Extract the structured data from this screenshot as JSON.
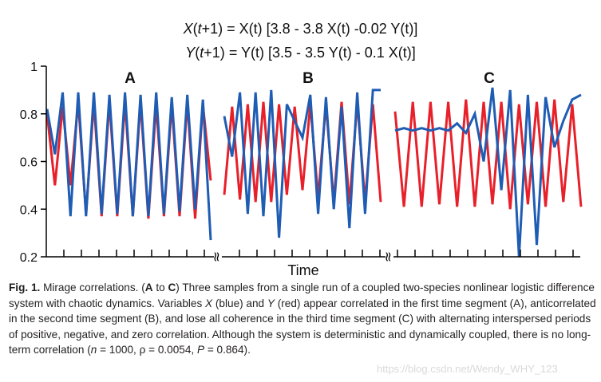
{
  "equations": {
    "eq1": {
      "lhs_var": "X",
      "lhs_arg": "t",
      "rhs": "= X(t) [3.8 - 3.8 X(t) -0.02 Y(t)]"
    },
    "eq2": {
      "lhs_var": "Y",
      "lhs_arg": "t",
      "rhs": "= Y(t) [3.5 - 3.5 Y(t) - 0.1 X(t)]"
    }
  },
  "chart_data": {
    "type": "line",
    "title": "",
    "xlabel": "Time",
    "ylabel": "",
    "ylim": [
      0.2,
      1.0
    ],
    "y_ticks": [
      "0.2",
      "0.4",
      "0.6",
      "0.8",
      "1"
    ],
    "grid": false,
    "axis_break_marker": "≈",
    "segments": [
      {
        "label": "A",
        "series": [
          {
            "name": "Y",
            "color": "#e8202a",
            "values": [
              0.8,
              0.5,
              0.83,
              0.5,
              0.85,
              0.38,
              0.85,
              0.37,
              0.85,
              0.37,
              0.85,
              0.37,
              0.85,
              0.36,
              0.84,
              0.37,
              0.84,
              0.37,
              0.85,
              0.36,
              0.84,
              0.52
            ]
          },
          {
            "name": "X",
            "color": "#1f5db5",
            "values": [
              0.82,
              0.63,
              0.89,
              0.37,
              0.89,
              0.37,
              0.89,
              0.38,
              0.88,
              0.38,
              0.89,
              0.37,
              0.88,
              0.37,
              0.89,
              0.38,
              0.87,
              0.39,
              0.88,
              0.4,
              0.86,
              0.27
            ]
          }
        ]
      },
      {
        "label": "B",
        "series": [
          {
            "name": "Y",
            "color": "#e8202a",
            "values": [
              0.46,
              0.83,
              0.44,
              0.84,
              0.43,
              0.85,
              0.43,
              0.84,
              0.46,
              0.83,
              0.48,
              0.84,
              0.45,
              0.84,
              0.43,
              0.85,
              0.42,
              0.85,
              0.43,
              0.84,
              0.43
            ]
          },
          {
            "name": "X",
            "color": "#1f5db5",
            "values": [
              0.79,
              0.62,
              0.89,
              0.38,
              0.89,
              0.37,
              0.9,
              0.28,
              0.84,
              0.77,
              0.7,
              0.88,
              0.38,
              0.87,
              0.4,
              0.83,
              0.32,
              0.89,
              0.38,
              0.9,
              0.9
            ]
          }
        ]
      },
      {
        "label": "C",
        "series": [
          {
            "name": "Y",
            "color": "#e8202a",
            "values": [
              0.81,
              0.41,
              0.85,
              0.41,
              0.85,
              0.42,
              0.85,
              0.41,
              0.86,
              0.41,
              0.85,
              0.42,
              0.85,
              0.4,
              0.84,
              0.42,
              0.85,
              0.41,
              0.86,
              0.43,
              0.84,
              0.41
            ]
          },
          {
            "name": "X",
            "color": "#1f5db5",
            "values": [
              0.73,
              0.74,
              0.73,
              0.74,
              0.73,
              0.74,
              0.73,
              0.76,
              0.72,
              0.8,
              0.6,
              0.91,
              0.48,
              0.9,
              0.2,
              0.88,
              0.25,
              0.87,
              0.66,
              0.77,
              0.86,
              0.88
            ]
          }
        ]
      }
    ]
  },
  "caption": {
    "fig_label": "Fig. 1.",
    "title": "Mirage correlations.",
    "text_open": "(",
    "A": "A",
    "to": " to ",
    "C": "C",
    "text_close": ")",
    "text1": " Three samples from a single run of a coupled two-species nonlinear logistic difference system with chaotic dynamics. Variables ",
    "var_x": "X",
    "text2": " (blue) and ",
    "var_y": "Y",
    "text3": " (red) appear correlated in the first time segment (A), anticorrelated in the second time segment (B), and lose all coherence in the third time segment (C) with alternating interspersed periods of positive, negative, and zero correlation. Although the system is deterministic and dynamically coupled, there is no long-term correlation (",
    "n": "n",
    "n_val": " = 1000, ρ = 0.0054, ",
    "p": "P",
    "p_val": " = 0.864)."
  },
  "watermark": "https://blog.csdn.net/Wendy_WHY_123"
}
